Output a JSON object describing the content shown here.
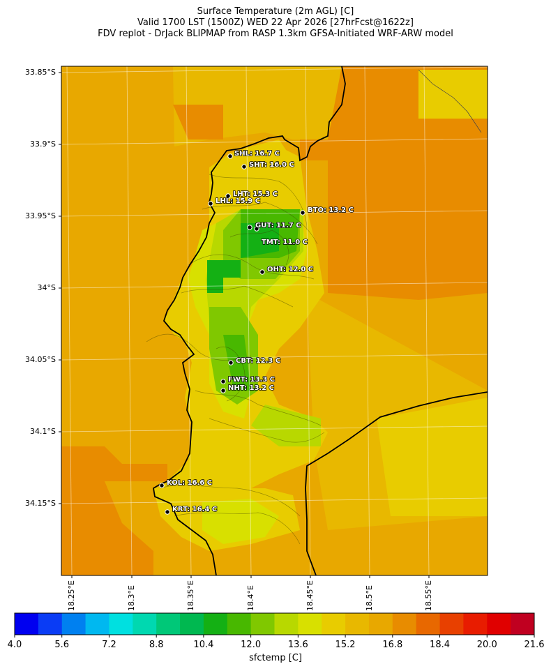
{
  "title": {
    "line1": "Surface Temperature (2m AGL) [C]",
    "line2": "Valid 1700 LST (1500Z) WED 22 Apr 2026 [27hrFcst@1622z]",
    "line3": "FDV replot - DrJack BLIPMAP from RASP 1.3km GFSA-Initiated WRF-ARW model"
  },
  "axes": {
    "lat_ticks": [
      "33.85°S",
      "33.9°S",
      "33.95°S",
      "34°S",
      "34.05°S",
      "34.1°S",
      "34.15°S"
    ],
    "lon_ticks": [
      "18.25°E",
      "18.3°E",
      "18.35°E",
      "18.4°E",
      "18.45°E",
      "18.5°E",
      "18.55°E"
    ]
  },
  "stations": [
    {
      "code": "SHL",
      "label": "SHL: 16.7 C",
      "temp": 16.7
    },
    {
      "code": "SHT",
      "label": "SHT: 16.0 C",
      "temp": 16.0
    },
    {
      "code": "LHT",
      "label": "LHT: 15.3 C",
      "temp": 15.3
    },
    {
      "code": "LHL",
      "label": "LHL: 15.9 C",
      "temp": 15.9
    },
    {
      "code": "BTO",
      "label": "BTO: 13.2 C",
      "temp": 13.2
    },
    {
      "code": "GUT",
      "label": "GUT: 11.7 C",
      "temp": 11.7
    },
    {
      "code": "TMT",
      "label": "TMT: 11.0 C",
      "temp": 11.0
    },
    {
      "code": "OHT",
      "label": "OHT: 12.0 C",
      "temp": 12.0
    },
    {
      "code": "CBT",
      "label": "CBT: 12.3 C",
      "temp": 12.3
    },
    {
      "code": "FWT",
      "label": "FWT: 13.3 C",
      "temp": 13.3
    },
    {
      "code": "NHT",
      "label": "NHT: 13.2 C",
      "temp": 13.2
    },
    {
      "code": "KOL",
      "label": "KOL: 16.6 C",
      "temp": 16.6
    },
    {
      "code": "KRT",
      "label": "KRT: 16.4 C",
      "temp": 16.4
    }
  ],
  "colorbar": {
    "label": "sfctemp [C]",
    "min": 4.0,
    "max": 21.6,
    "ticks": [
      "4.0",
      "5.6",
      "7.2",
      "8.8",
      "10.4",
      "12.0",
      "13.6",
      "15.2",
      "16.8",
      "18.4",
      "20.0",
      "21.6"
    ],
    "colors": [
      "#0000f0",
      "#0a3cf5",
      "#0080f0",
      "#00b8f0",
      "#00e0e0",
      "#00d8b0",
      "#00c878",
      "#00b850",
      "#14b014",
      "#48b800",
      "#80c800",
      "#b8d800",
      "#d8e000",
      "#e8cc00",
      "#e8b800",
      "#e8a800",
      "#e88c00",
      "#e86800",
      "#e84000",
      "#e81c00",
      "#e00000",
      "#c00020"
    ]
  }
}
